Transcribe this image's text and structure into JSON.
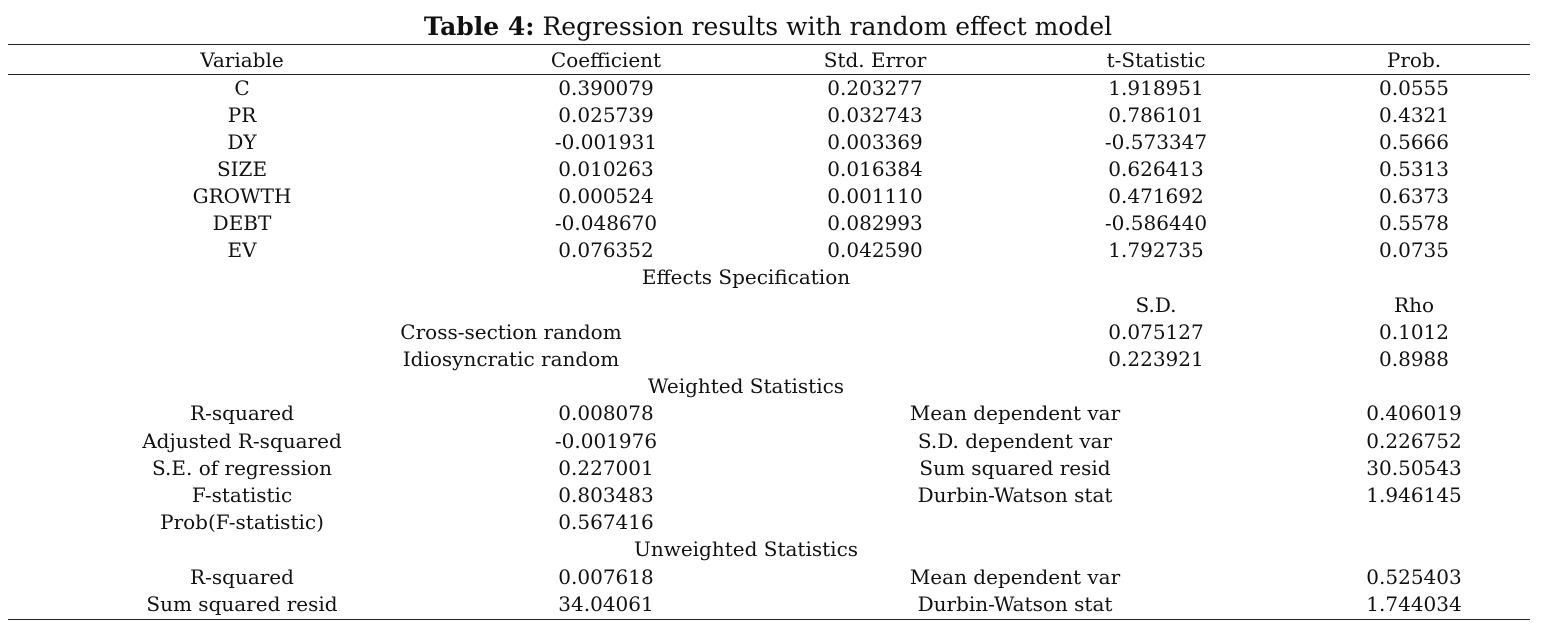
{
  "title": {
    "label": "Table 4:",
    "text": "Regression results with random effect model"
  },
  "header": [
    "Variable",
    "Coefficient",
    "Std. Error",
    "t-Statistic",
    "Prob."
  ],
  "coefficients": [
    [
      "C",
      "0.390079",
      "0.203277",
      "1.918951",
      "0.0555"
    ],
    [
      "PR",
      "0.025739",
      "0.032743",
      "0.786101",
      "0.4321"
    ],
    [
      "DY",
      "-0.001931",
      "0.003369",
      "-0.573347",
      "0.5666"
    ],
    [
      "SIZE",
      "0.010263",
      "0.016384",
      "0.626413",
      "0.5313"
    ],
    [
      "GROWTH",
      "0.000524",
      "0.001110",
      "0.471692",
      "0.6373"
    ],
    [
      "DEBT",
      "-0.048670",
      "0.082993",
      "-0.586440",
      "0.5578"
    ],
    [
      "EV",
      "0.076352",
      "0.042590",
      "1.792735",
      "0.0735"
    ]
  ],
  "effects": {
    "title": "Effects Specification",
    "headers": [
      "S.D.",
      "Rho"
    ],
    "rows": [
      [
        "Cross-section random",
        "0.075127",
        "0.1012"
      ],
      [
        "Idiosyncratic random",
        "0.223921",
        "0.8988"
      ]
    ]
  },
  "weighted": {
    "title": "Weighted Statistics",
    "rows": [
      [
        "R-squared",
        "0.008078",
        "Mean dependent var",
        "0.406019"
      ],
      [
        "Adjusted R-squared",
        "-0.001976",
        "S.D. dependent var",
        "0.226752"
      ],
      [
        "S.E. of regression",
        "0.227001",
        "Sum squared resid",
        "30.50543"
      ],
      [
        "F-statistic",
        "0.803483",
        "Durbin-Watson stat",
        "1.946145"
      ],
      [
        "Prob(F-statistic)",
        "0.567416",
        "",
        ""
      ]
    ]
  },
  "unweighted": {
    "title": "Unweighted Statistics",
    "rows": [
      [
        "R-squared",
        "0.007618",
        "Mean dependent var",
        "0.525403"
      ],
      [
        "Sum squared resid",
        "34.04061",
        "Durbin-Watson stat",
        "1.744034"
      ]
    ]
  }
}
